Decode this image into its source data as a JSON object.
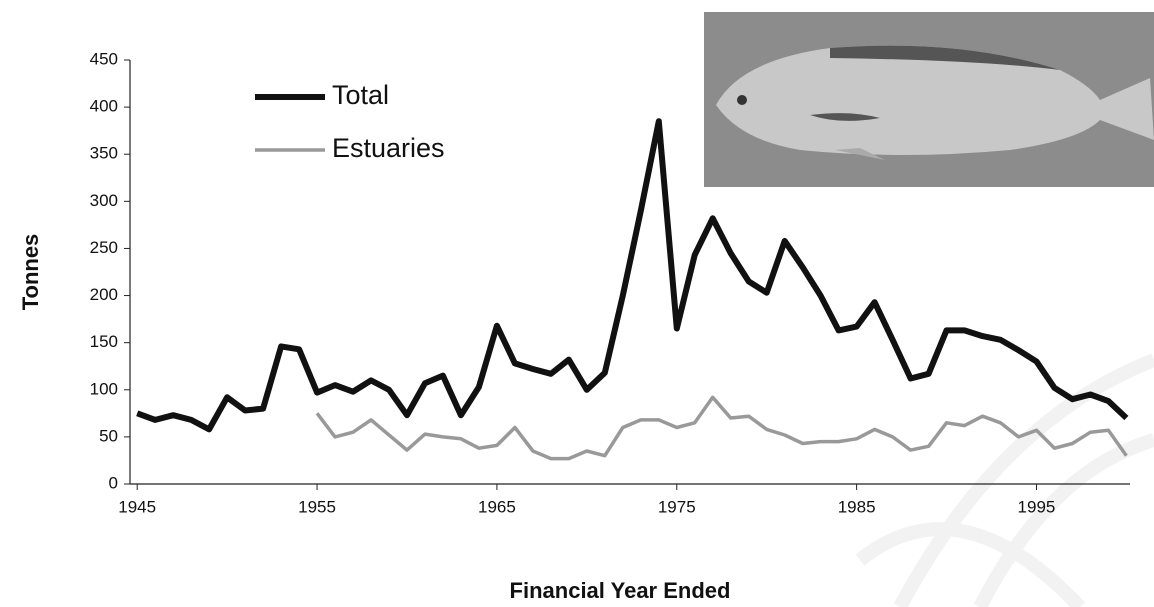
{
  "chart_data": {
    "type": "line",
    "x_label": "Financial Year Ended",
    "y_label": "Tonnes",
    "x": [
      1945,
      1946,
      1947,
      1948,
      1949,
      1950,
      1951,
      1952,
      1953,
      1954,
      1955,
      1956,
      1957,
      1958,
      1959,
      1960,
      1961,
      1962,
      1963,
      1964,
      1965,
      1966,
      1967,
      1968,
      1969,
      1970,
      1971,
      1972,
      1973,
      1974,
      1975,
      1976,
      1977,
      1978,
      1979,
      1980,
      1981,
      1982,
      1983,
      1984,
      1985,
      1986,
      1987,
      1988,
      1989,
      1990,
      1991,
      1992,
      1993,
      1994,
      1995,
      1996,
      1997,
      1998,
      1999,
      2000
    ],
    "series": [
      {
        "name": "Total",
        "color": "#111111",
        "width": 6,
        "values": [
          75,
          68,
          73,
          68,
          58,
          92,
          78,
          80,
          146,
          143,
          97,
          105,
          98,
          110,
          100,
          73,
          107,
          115,
          73,
          103,
          168,
          128,
          122,
          117,
          132,
          100,
          118,
          200,
          290,
          385,
          165,
          243,
          282,
          245,
          215,
          203,
          258,
          230,
          200,
          163,
          167,
          193,
          153,
          112,
          117,
          163,
          163,
          157,
          153,
          142,
          130,
          102,
          90,
          95,
          88,
          70
        ]
      },
      {
        "name": "Estuaries",
        "color": "#999999",
        "width": 3.5,
        "values": [
          null,
          null,
          null,
          null,
          null,
          null,
          null,
          null,
          null,
          null,
          75,
          50,
          55,
          68,
          52,
          36,
          53,
          50,
          48,
          38,
          41,
          60,
          35,
          27,
          27,
          35,
          30,
          60,
          68,
          68,
          60,
          65,
          92,
          70,
          72,
          58,
          52,
          43,
          45,
          45,
          48,
          58,
          50,
          36,
          40,
          65,
          62,
          72,
          65,
          50,
          57,
          38,
          43,
          55,
          57,
          30
        ]
      }
    ],
    "xlim": [
      1944.6,
      2000.2
    ],
    "xticks": [
      1945,
      1955,
      1965,
      1975,
      1985,
      1995
    ],
    "ylim": [
      0,
      450
    ],
    "yticks": [
      0,
      50,
      100,
      150,
      200,
      250,
      300,
      350,
      400,
      450
    ],
    "grid": false,
    "legend": "upper left"
  }
}
